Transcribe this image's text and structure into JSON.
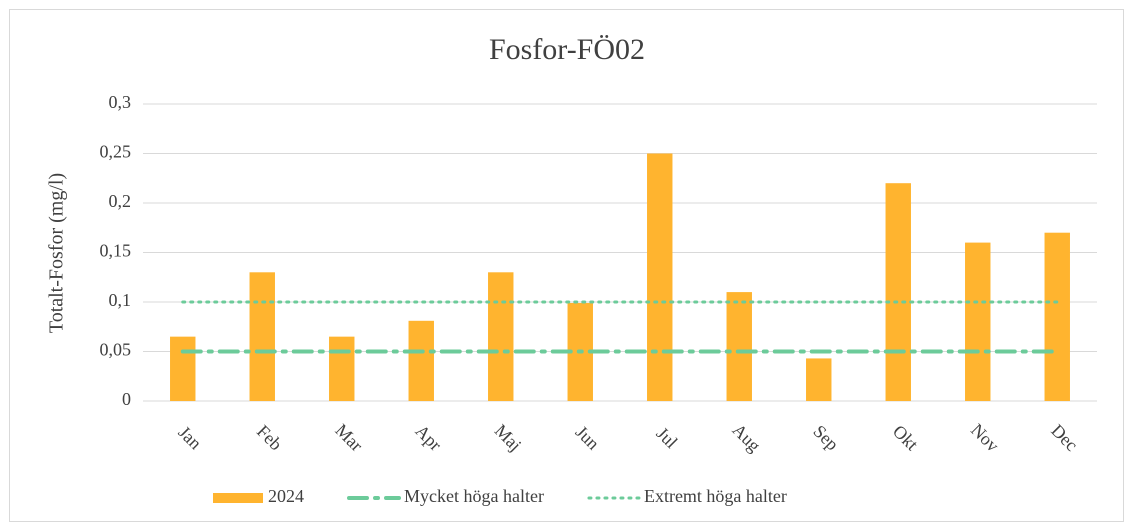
{
  "chart_data": {
    "type": "bar",
    "title": "Fosfor-FÖ02",
    "y_label": "Totalt-Fosfor (mg/l)",
    "categories": [
      "Jan",
      "Feb",
      "Mar",
      "Apr",
      "Maj",
      "Jun",
      "Jul",
      "Aug",
      "Sep",
      "Okt",
      "Nov",
      "Dec"
    ],
    "series": [
      {
        "name": "2024",
        "type": "bar",
        "color": "#ffb42f",
        "values": [
          0.065,
          0.13,
          0.065,
          0.081,
          0.13,
          0.099,
          0.25,
          0.11,
          0.043,
          0.22,
          0.16,
          0.17
        ]
      },
      {
        "name": "Mycket höga halter",
        "type": "line",
        "style": "dashdot",
        "color": "#6ccb9a",
        "values": [
          0.05,
          0.05,
          0.05,
          0.05,
          0.05,
          0.05,
          0.05,
          0.05,
          0.05,
          0.05,
          0.05,
          0.05
        ]
      },
      {
        "name": "Extremt höga halter",
        "type": "line",
        "style": "dotted",
        "color": "#6ccb9a",
        "values": [
          0.1,
          0.1,
          0.1,
          0.1,
          0.1,
          0.1,
          0.1,
          0.1,
          0.1,
          0.1,
          0.1,
          0.1
        ]
      }
    ],
    "ylim": [
      0,
      0.3
    ],
    "yticks": [
      0,
      {
        "value": 0.05,
        "label": "0,05"
      },
      {
        "value": 0.1,
        "label": "0,1"
      },
      {
        "value": 0.15,
        "label": "0,15"
      },
      {
        "value": 0.2,
        "label": "0,2"
      },
      {
        "value": 0.25,
        "label": "0,25"
      },
      {
        "value": 0.3,
        "label": "0,3"
      }
    ],
    "grid": true,
    "legend": "bottom"
  }
}
